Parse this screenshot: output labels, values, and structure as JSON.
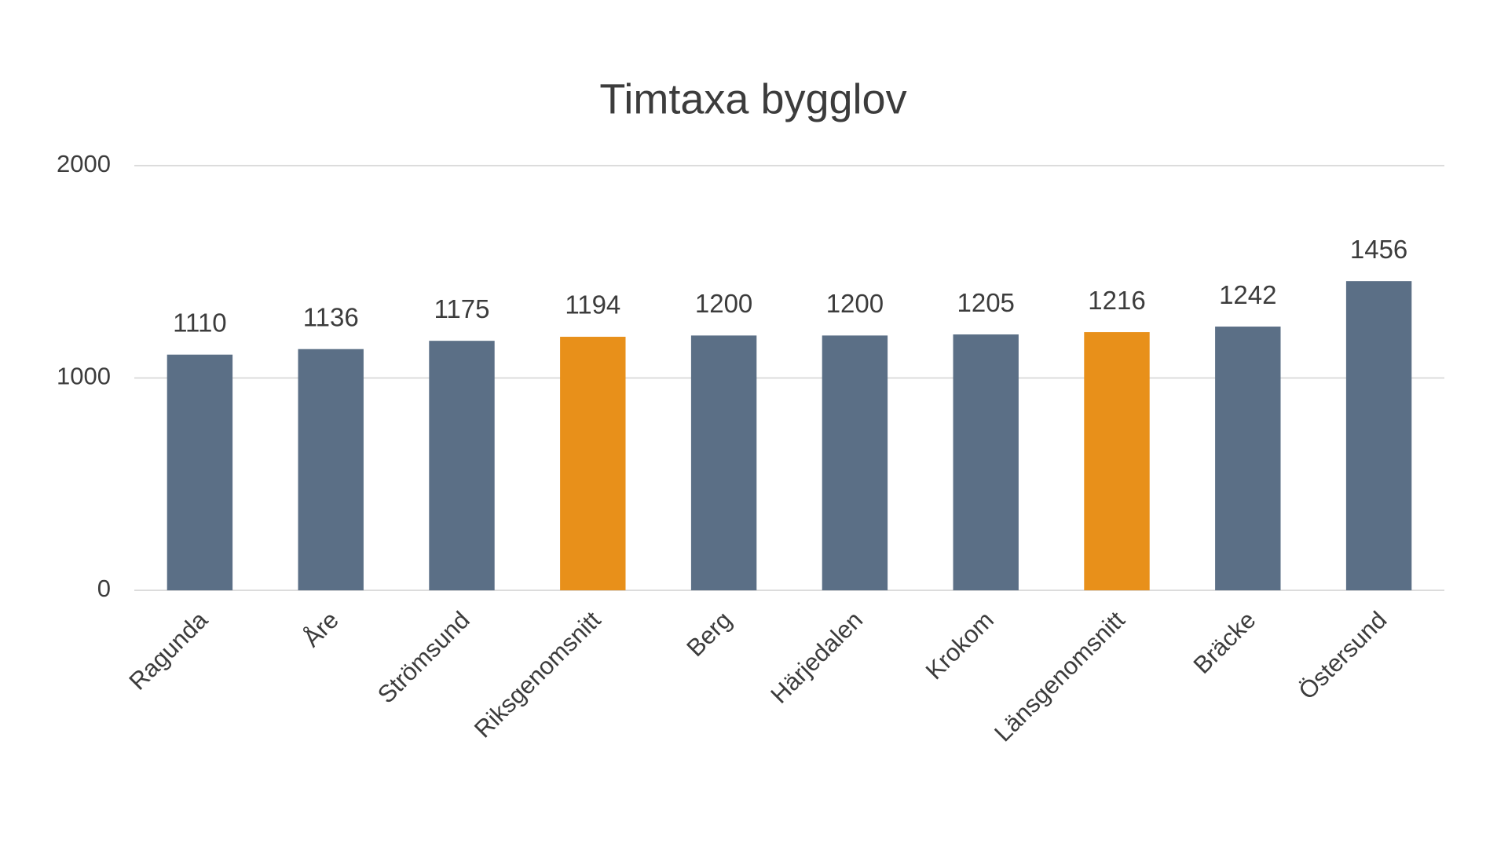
{
  "chart_data": {
    "type": "bar",
    "title": "Timtaxa bygglov",
    "categories": [
      "Ragunda",
      "Åre",
      "Strömsund",
      "Riksgenomsnitt",
      "Berg",
      "Härjedalen",
      "Krokom",
      "Länsgenomsnitt",
      "Bräcke",
      "Östersund"
    ],
    "values": [
      1110,
      1136,
      1175,
      1194,
      1200,
      1200,
      1205,
      1216,
      1242,
      1456
    ],
    "colors": [
      "#5b6f86",
      "#5b6f86",
      "#5b6f86",
      "#e8901a",
      "#5b6f86",
      "#5b6f86",
      "#5b6f86",
      "#e8901a",
      "#5b6f86",
      "#5b6f86"
    ],
    "ylim": [
      0,
      2000
    ],
    "yticks": [
      0,
      1000,
      2000
    ],
    "grid": true
  }
}
